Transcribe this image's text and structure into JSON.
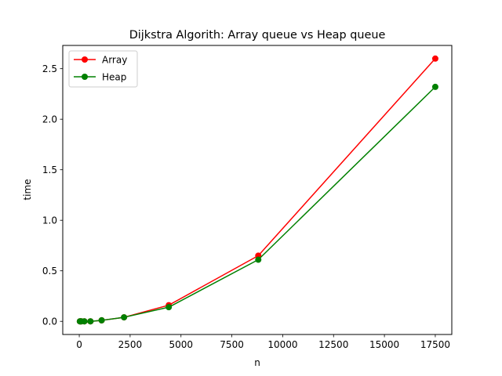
{
  "chart_data": {
    "type": "line",
    "title": "Dijkstra Algorith: Array queue vs Heap queue",
    "xlabel": "n",
    "ylabel": "time",
    "xlim": [
      -812,
      18312
    ],
    "ylim": [
      -0.13,
      2.73
    ],
    "x_ticks": [
      0,
      2500,
      5000,
      7500,
      10000,
      12500,
      15000,
      17500
    ],
    "x_tick_labels": [
      "0",
      "2500",
      "5000",
      "7500",
      "10000",
      "12500",
      "15000",
      "17500"
    ],
    "y_ticks": [
      0.0,
      0.5,
      1.0,
      1.5,
      2.0,
      2.5
    ],
    "y_tick_labels": [
      "0.0",
      "0.5",
      "1.0",
      "1.5",
      "2.0",
      "2.5"
    ],
    "grid": false,
    "legend_position": "top-left",
    "x": [
      30,
      60,
      100,
      250,
      550,
      1100,
      2200,
      4400,
      8800,
      17500
    ],
    "series": [
      {
        "name": "Array",
        "color": "#ff0000",
        "marker": "circle",
        "values": [
          0.0,
          0.0,
          0.0,
          0.0,
          0.0,
          0.01,
          0.04,
          0.16,
          0.65,
          2.6
        ]
      },
      {
        "name": "Heap",
        "color": "#008000",
        "marker": "circle",
        "values": [
          0.0,
          0.0,
          0.0,
          0.0,
          0.0,
          0.01,
          0.04,
          0.14,
          0.61,
          2.32
        ]
      }
    ]
  }
}
